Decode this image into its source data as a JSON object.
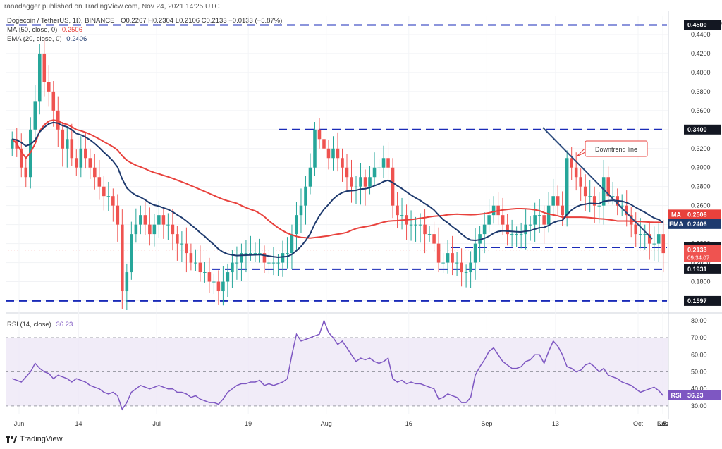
{
  "publisher": "ranadagger published on TradingView.com, Nov 24, 2021 14:25 UTC",
  "legend": {
    "symbol": "Dogecoin / TetherUS, 1D, BINANCE",
    "ohlc": "O0.2267 H0.2304 L0.2106 C0.2133 −0.0133 (−5.87%)",
    "ma": "MA (50, close, 0)",
    "ma_value": "0.2506",
    "ema": "EMA (20, close, 0)",
    "ema_value": "0.2406",
    "rsi": "RSI (14, close)",
    "rsi_value": "36.23"
  },
  "brand": "TradingView",
  "annotation": "Downtrend line",
  "colors": {
    "up": "#26a69a",
    "down": "#ef5350",
    "ma": "#e8413c",
    "ema": "#1e3a6e",
    "level": "#1a2bb8",
    "rsi": "#7e57c2",
    "trend": "#2b4a7c"
  },
  "chart_data": [
    {
      "type": "candlestick",
      "price_axis": {
        "unit": "USDT",
        "ylim": [
          0.15,
          0.46
        ],
        "ticks": [
          "0.4400",
          "0.4200",
          "0.4000",
          "0.3800",
          "0.3600",
          "0.3400",
          "0.3200",
          "0.3000",
          "0.2800",
          "0.2600",
          "0.2400",
          "0.2200",
          "0.2000",
          "0.1800",
          "0.1600"
        ]
      },
      "x_ticks": [
        "Jun",
        "14",
        "Jul",
        "19",
        "Aug",
        "16",
        "Sep",
        "13",
        "Oct",
        "18",
        "Nov",
        "15",
        "Dec"
      ],
      "horizontal_levels": [
        {
          "value": 0.45,
          "label": "0.4500"
        },
        {
          "value": 0.34,
          "label": "0.3400"
        },
        {
          "value": 0.216,
          "label": "0.2160"
        },
        {
          "value": 0.1931,
          "label": "0.1931"
        },
        {
          "value": 0.1597,
          "label": "0.1597"
        }
      ],
      "last_price": {
        "value": 0.2133,
        "label": "0.2133",
        "countdown": "09:34:07"
      },
      "ma50_last": {
        "value": 0.2506,
        "label": "MA",
        "text": "0.2506"
      },
      "ema20_last": {
        "value": 0.2406,
        "label": "EMA",
        "text": "0.2406"
      },
      "close_series_approx": [
        0.33,
        0.32,
        0.3,
        0.29,
        0.34,
        0.37,
        0.42,
        0.39,
        0.38,
        0.36,
        0.34,
        0.32,
        0.33,
        0.31,
        0.3,
        0.32,
        0.31,
        0.3,
        0.29,
        0.28,
        0.27,
        0.27,
        0.26,
        0.24,
        0.17,
        0.19,
        0.23,
        0.24,
        0.25,
        0.24,
        0.23,
        0.24,
        0.25,
        0.24,
        0.24,
        0.23,
        0.22,
        0.22,
        0.21,
        0.2,
        0.2,
        0.19,
        0.19,
        0.18,
        0.18,
        0.17,
        0.18,
        0.19,
        0.2,
        0.2,
        0.21,
        0.21,
        0.21,
        0.21,
        0.21,
        0.2,
        0.2,
        0.2,
        0.2,
        0.21,
        0.21,
        0.23,
        0.25,
        0.26,
        0.28,
        0.3,
        0.34,
        0.33,
        0.32,
        0.31,
        0.32,
        0.31,
        0.3,
        0.29,
        0.28,
        0.28,
        0.29,
        0.28,
        0.29,
        0.3,
        0.3,
        0.31,
        0.3,
        0.26,
        0.25,
        0.25,
        0.24,
        0.24,
        0.24,
        0.24,
        0.23,
        0.23,
        0.22,
        0.2,
        0.2,
        0.21,
        0.2,
        0.2,
        0.19,
        0.19,
        0.2,
        0.22,
        0.23,
        0.24,
        0.25,
        0.26,
        0.25,
        0.24,
        0.23,
        0.23,
        0.23,
        0.23,
        0.24,
        0.24,
        0.25,
        0.25,
        0.24,
        0.26,
        0.27,
        0.26,
        0.25,
        0.31,
        0.3,
        0.29,
        0.28,
        0.27,
        0.27,
        0.26,
        0.26,
        0.29,
        0.27,
        0.27,
        0.26,
        0.26,
        0.25,
        0.24,
        0.23,
        0.23,
        0.23,
        0.22,
        0.22,
        0.23,
        0.21
      ]
    },
    {
      "type": "line",
      "title": "RSI (14, close)",
      "ylim": [
        25,
        82
      ],
      "ticks": [
        "80.00",
        "70.00",
        "60.00",
        "50.00",
        "40.00",
        "30.00"
      ],
      "bands": [
        30,
        70
      ],
      "mid": 50,
      "last": {
        "value": 36.23,
        "label": "RSI",
        "text": "36.23"
      },
      "values_approx": [
        46,
        45,
        44,
        47,
        50,
        55,
        52,
        50,
        49,
        46,
        48,
        47,
        46,
        44,
        46,
        45,
        44,
        42,
        41,
        40,
        38,
        37,
        38,
        36,
        28,
        32,
        38,
        40,
        42,
        41,
        40,
        41,
        42,
        41,
        40,
        40,
        38,
        38,
        37,
        35,
        36,
        34,
        33,
        32,
        32,
        31,
        34,
        38,
        40,
        42,
        43,
        43,
        44,
        44,
        45,
        42,
        43,
        42,
        43,
        44,
        46,
        60,
        72,
        68,
        69,
        70,
        71,
        72,
        80,
        73,
        70,
        66,
        68,
        64,
        60,
        56,
        58,
        57,
        58,
        56,
        55,
        56,
        58,
        46,
        44,
        45,
        43,
        44,
        43,
        43,
        42,
        41,
        40,
        34,
        35,
        37,
        36,
        35,
        32,
        32,
        35,
        48,
        53,
        57,
        62,
        64,
        60,
        56,
        54,
        52,
        52,
        53,
        56,
        57,
        60,
        60,
        55,
        62,
        68,
        65,
        60,
        53,
        52,
        50,
        51,
        54,
        55,
        53,
        50,
        52,
        48,
        47,
        46,
        44,
        43,
        42,
        40,
        38,
        39,
        40,
        41,
        39,
        36
      ]
    }
  ]
}
